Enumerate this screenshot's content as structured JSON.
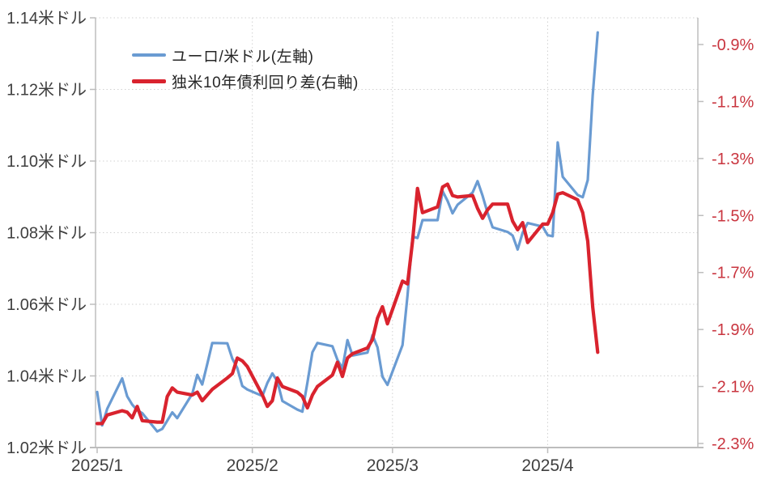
{
  "chart_data": {
    "type": "line",
    "title": "",
    "x_axis": {
      "tick_labels": [
        "2025/1",
        "2025/2",
        "2025/3",
        "2025/4"
      ],
      "tick_day_offsets": [
        0,
        31,
        59,
        90
      ],
      "domain_days": [
        0,
        120
      ]
    },
    "left_axis": {
      "tick_labels": [
        "1.14米ドル",
        "1.12米ドル",
        "1.10米ドル",
        "1.08米ドル",
        "1.06米ドル",
        "1.04米ドル",
        "1.02米ドル"
      ],
      "tick_values": [
        1.14,
        1.12,
        1.1,
        1.08,
        1.06,
        1.04,
        1.02
      ],
      "range": [
        1.02,
        1.14
      ],
      "grid": true
    },
    "right_axis": {
      "tick_labels": [
        "-0.9%",
        "-1.1%",
        "-1.3%",
        "-1.5%",
        "-1.7%",
        "-1.9%",
        "-2.1%",
        "-2.3%"
      ],
      "tick_values": [
        -0.9,
        -1.1,
        -1.3,
        -1.5,
        -1.7,
        -1.9,
        -2.1,
        -2.3
      ]
    },
    "legend": [
      {
        "label": "ユーロ/米ドル(左軸)",
        "color": "#6a9bd2"
      },
      {
        "label": "独米10年債利回り差(右軸)",
        "color": "#d9232e"
      }
    ],
    "legend_position": "top-left-inside",
    "dates": [
      "1/1",
      "1/2",
      "1/3",
      "1/6",
      "1/7",
      "1/8",
      "1/9",
      "1/10",
      "1/13",
      "1/14",
      "1/15",
      "1/16",
      "1/17",
      "1/20",
      "1/21",
      "1/22",
      "1/23",
      "1/24",
      "1/27",
      "1/28",
      "1/29",
      "1/30",
      "1/31",
      "2/3",
      "2/4",
      "2/5",
      "2/6",
      "2/7",
      "2/10",
      "2/11",
      "2/12",
      "2/13",
      "2/14",
      "2/17",
      "2/18",
      "2/19",
      "2/20",
      "2/21",
      "2/24",
      "2/25",
      "2/26",
      "2/27",
      "2/28",
      "3/3",
      "3/4",
      "3/5",
      "3/6",
      "3/7",
      "3/10",
      "3/11",
      "3/12",
      "3/13",
      "3/14",
      "3/17",
      "3/18",
      "3/19",
      "3/20",
      "3/21",
      "3/24",
      "3/25",
      "3/26",
      "3/27",
      "3/28",
      "3/31",
      "4/1",
      "4/2",
      "4/3",
      "4/4",
      "4/7",
      "4/8",
      "4/9",
      "4/10",
      "4/11"
    ],
    "day_offsets": [
      0,
      1,
      2,
      5,
      6,
      7,
      8,
      9,
      12,
      13,
      14,
      15,
      16,
      19,
      20,
      21,
      22,
      23,
      26,
      27,
      28,
      29,
      30,
      33,
      34,
      35,
      36,
      37,
      40,
      41,
      42,
      43,
      44,
      47,
      48,
      49,
      50,
      51,
      54,
      55,
      56,
      57,
      58,
      61,
      62,
      63,
      64,
      65,
      68,
      69,
      70,
      71,
      72,
      75,
      76,
      77,
      78,
      79,
      82,
      83,
      84,
      85,
      86,
      89,
      90,
      91,
      92,
      93,
      96,
      97,
      98,
      99,
      100
    ],
    "series": [
      {
        "name": "ユーロ/米ドル(左軸)",
        "axis": "left",
        "color": "#6a9bd2",
        "stroke_width": 3.2,
        "values": [
          1.0355,
          1.0262,
          1.0308,
          1.0393,
          1.0343,
          1.032,
          1.0304,
          1.0296,
          1.0245,
          1.0252,
          1.0275,
          1.0298,
          1.0282,
          1.035,
          1.0403,
          1.0376,
          1.0433,
          1.0492,
          1.0491,
          1.0448,
          1.0422,
          1.0372,
          1.0362,
          1.0344,
          1.038,
          1.0407,
          1.0385,
          1.033,
          1.0306,
          1.03,
          1.0381,
          1.0466,
          1.0492,
          1.0483,
          1.0445,
          1.0421,
          1.05,
          1.0457,
          1.0465,
          1.0514,
          1.048,
          1.0398,
          1.0375,
          1.0486,
          1.0625,
          1.0789,
          1.0785,
          1.0835,
          1.0835,
          1.0916,
          1.0889,
          1.0854,
          1.0878,
          1.0912,
          1.0944,
          1.0903,
          1.0855,
          1.0815,
          1.0802,
          1.0792,
          1.0753,
          1.08,
          1.0827,
          1.0817,
          1.0793,
          1.079,
          1.1052,
          1.0956,
          1.0905,
          1.0899,
          1.0947,
          1.1183,
          1.1359
        ]
      },
      {
        "name": "独米10年債利回り差(右軸)",
        "axis": "right",
        "color": "#d9232e",
        "stroke_width": 4.2,
        "values": [
          -2.23,
          -2.23,
          -2.2,
          -2.185,
          -2.19,
          -2.21,
          -2.17,
          -2.22,
          -2.225,
          -2.225,
          -2.135,
          -2.105,
          -2.12,
          -2.13,
          -2.12,
          -2.15,
          -2.13,
          -2.11,
          -2.07,
          -2.055,
          -2.0,
          -2.01,
          -2.03,
          -2.13,
          -2.17,
          -2.15,
          -2.07,
          -2.1,
          -2.12,
          -2.135,
          -2.175,
          -2.13,
          -2.1,
          -2.06,
          -2.015,
          -2.065,
          -2.0,
          -1.985,
          -1.965,
          -1.935,
          -1.86,
          -1.82,
          -1.88,
          -1.73,
          -1.74,
          -1.59,
          -1.405,
          -1.49,
          -1.47,
          -1.4,
          -1.39,
          -1.43,
          -1.435,
          -1.43,
          -1.475,
          -1.51,
          -1.48,
          -1.46,
          -1.46,
          -1.52,
          -1.55,
          -1.525,
          -1.595,
          -1.53,
          -1.53,
          -1.49,
          -1.425,
          -1.42,
          -1.445,
          -1.49,
          -1.59,
          -1.82,
          -1.98
        ]
      }
    ],
    "colors": {
      "axis_line": "#bdbdbd",
      "gridline": "#d2d2d2",
      "left_tick_label": "#3f3f3f",
      "x_tick_label": "#3f3f3f",
      "right_tick_label": "#c9353f"
    }
  }
}
